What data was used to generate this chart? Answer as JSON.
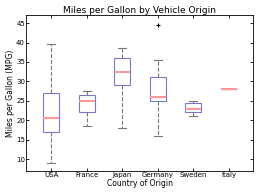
{
  "title": "Miles per Gallon by Vehicle Origin",
  "xlabel": "Country of Origin",
  "ylabel": "Miles per Gallon (MPG)",
  "ylim": [
    7,
    47
  ],
  "yticks": [
    10,
    15,
    20,
    25,
    30,
    35,
    40,
    45
  ],
  "categories": [
    "USA",
    "France",
    "Japan",
    "Germany",
    "Sweden",
    "Italy"
  ],
  "box_data": {
    "USA": {
      "q1": 17.0,
      "median": 20.5,
      "q3": 27.0,
      "whislo": 9.0,
      "whishi": 39.5,
      "fliers": []
    },
    "France": {
      "q1": 22.0,
      "median": 25.0,
      "q3": 26.5,
      "whislo": 18.5,
      "whishi": 27.5,
      "fliers": []
    },
    "Japan": {
      "q1": 29.0,
      "median": 32.5,
      "q3": 36.0,
      "whislo": 18.0,
      "whishi": 38.5,
      "fliers": []
    },
    "Germany": {
      "q1": 25.0,
      "median": 26.0,
      "q3": 31.0,
      "whislo": 16.0,
      "whishi": 35.5,
      "fliers": [
        44.5
      ]
    },
    "Sweden": {
      "q1": 22.0,
      "median": 23.0,
      "q3": 24.5,
      "whislo": 21.0,
      "whishi": 25.0,
      "fliers": []
    },
    "Italy": {
      "q1": 28.0,
      "median": 28.0,
      "q3": 28.0,
      "whislo": 28.0,
      "whishi": 28.0,
      "fliers": []
    }
  },
  "box_facecolor": "#ffffff",
  "box_edgecolor": "#7777cc",
  "median_color": "#ff9999",
  "whisker_color": "#777777",
  "cap_color": "#777777",
  "flier_color": "#ff4444",
  "background_color": "#ffffff",
  "axes_bg_color": "#ffffff",
  "title_fontsize": 6.5,
  "label_fontsize": 5.5,
  "tick_fontsize": 5.0,
  "box_width": 0.45,
  "linewidth": 0.8,
  "median_linewidth": 1.5
}
